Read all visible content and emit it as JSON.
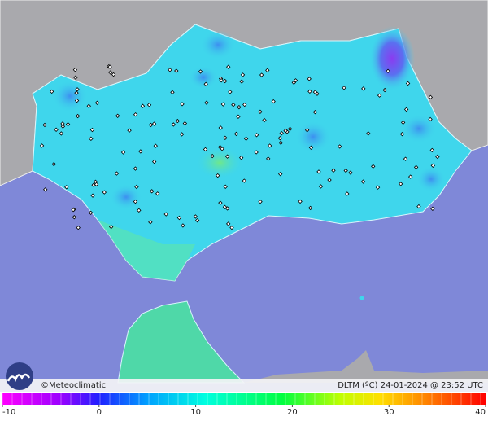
{
  "map": {
    "credit": "©Meteoclimatic",
    "caption": "DLTM (ºC)  24-01-2024 @ 23:52 UTC"
  },
  "colorbar": {
    "lim": [
      -10,
      40
    ],
    "ticks": [
      -10,
      0,
      10,
      20,
      30,
      40
    ]
  }
}
